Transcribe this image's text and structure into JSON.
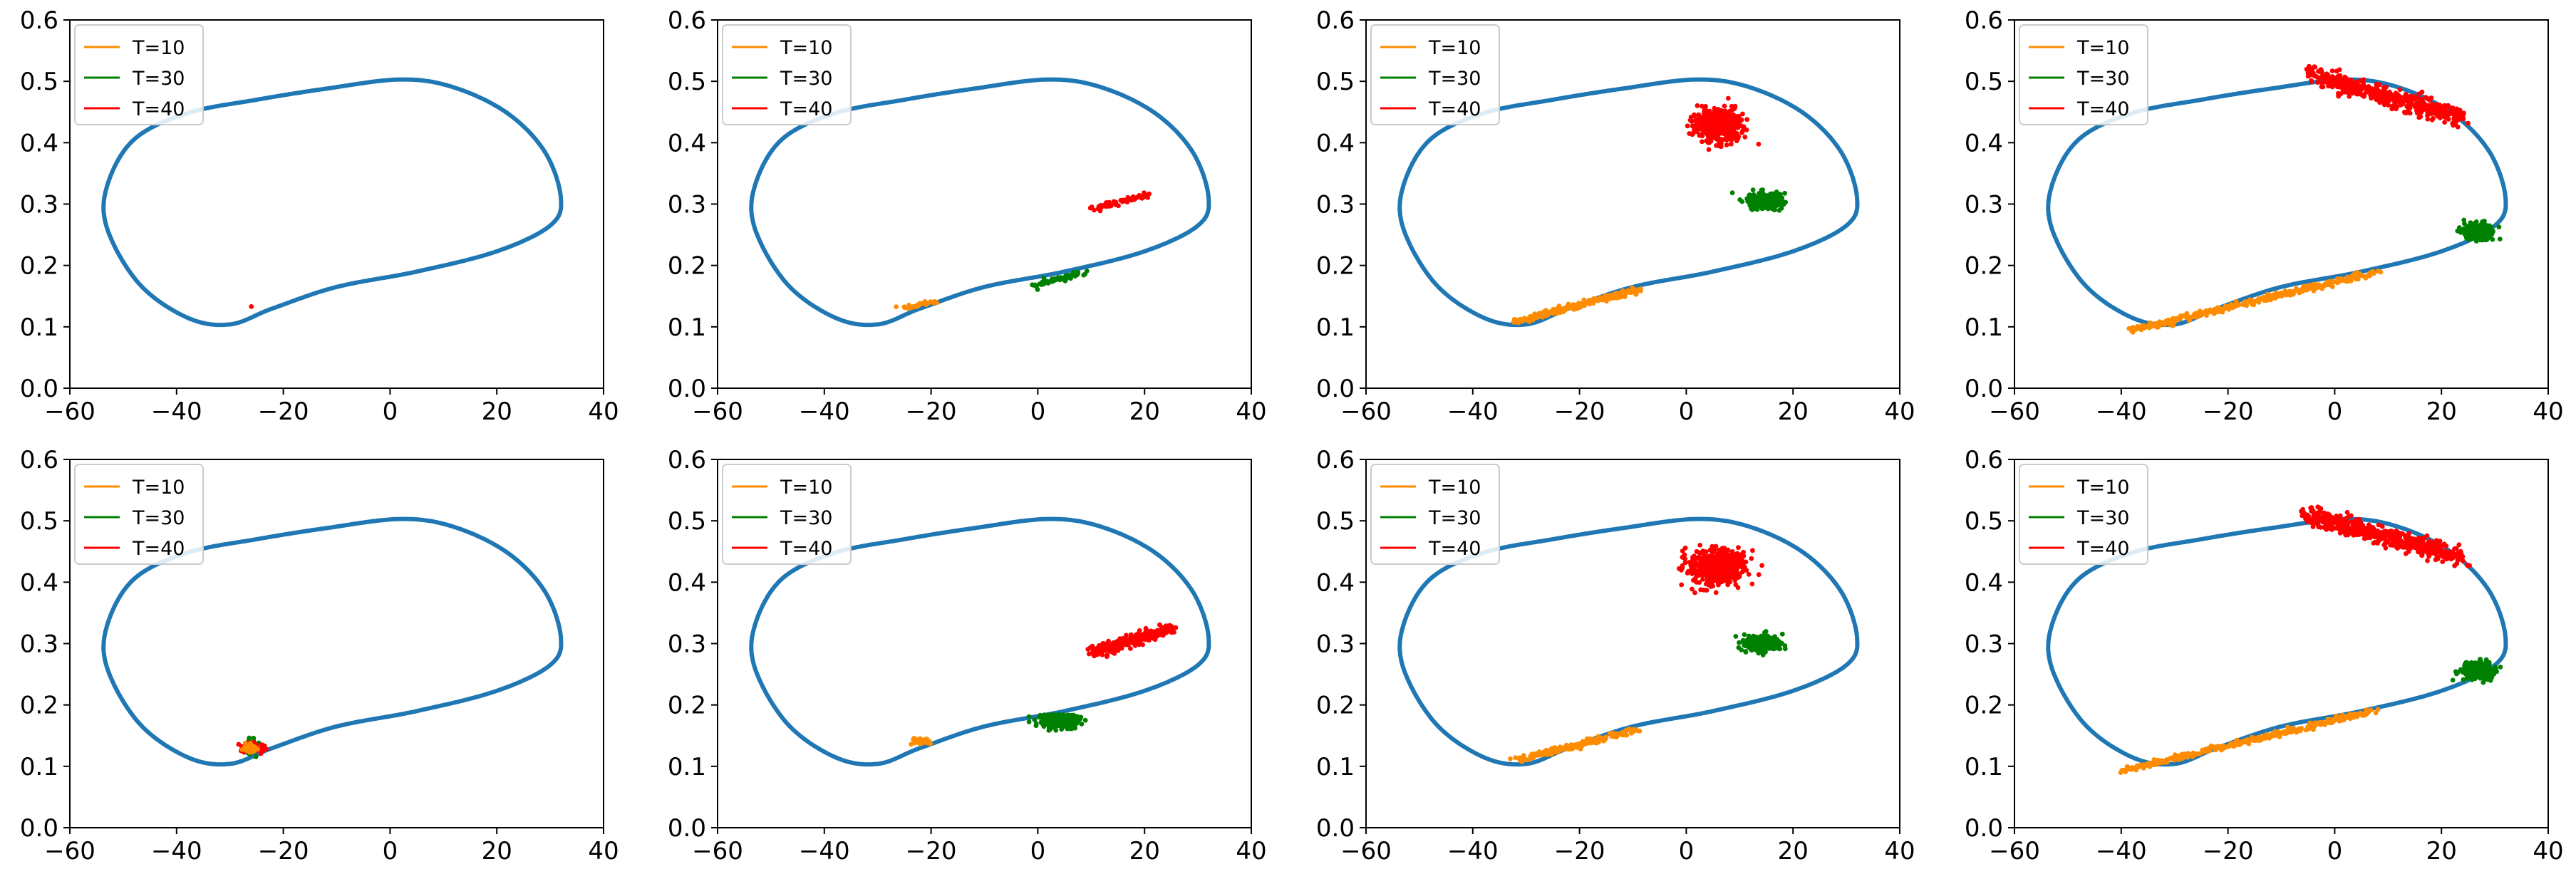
{
  "chart_data": {
    "type": "scatter",
    "layout": "2x4 grid of subplots",
    "axes": {
      "xlim": [
        -60,
        40
      ],
      "ylim": [
        0.0,
        0.6
      ],
      "xticks": [
        "−60",
        "−40",
        "−20",
        "0",
        "20",
        "40"
      ],
      "yticks": [
        "0.0",
        "0.1",
        "0.2",
        "0.3",
        "0.4",
        "0.5",
        "0.6"
      ],
      "grid": false
    },
    "legend": {
      "placement": "upper-left",
      "entries": [
        {
          "label": "T=10",
          "color": "#ff8c00"
        },
        {
          "label": "T=30",
          "color": "#008000"
        },
        {
          "label": "T=40",
          "color": "#ff0000"
        }
      ]
    },
    "limit_cycle": {
      "color": "#1f77b4",
      "points": [
        [
          2,
          0.503
        ],
        [
          12,
          0.49
        ],
        [
          22,
          0.448
        ],
        [
          29,
          0.385
        ],
        [
          32,
          0.31
        ],
        [
          30,
          0.265
        ],
        [
          20,
          0.223
        ],
        [
          5,
          0.19
        ],
        [
          -10,
          0.165
        ],
        [
          -22,
          0.13
        ],
        [
          -30,
          0.104
        ],
        [
          -38,
          0.115
        ],
        [
          -47,
          0.17
        ],
        [
          -53,
          0.26
        ],
        [
          -53,
          0.33
        ],
        [
          -48,
          0.405
        ],
        [
          -38,
          0.448
        ],
        [
          -25,
          0.47
        ],
        [
          -12,
          0.488
        ],
        [
          2,
          0.503
        ]
      ]
    },
    "panels": [
      {
        "clusters": [
          {
            "series": "T=40",
            "color": "#ff0000",
            "center": [
              -26,
              0.133
            ],
            "count": 1
          }
        ]
      },
      {
        "clusters": [
          {
            "series": "T=10",
            "color": "#ff8c00",
            "shape": "line",
            "from": [
              -25,
              0.131
            ],
            "to": [
              -19,
              0.141
            ],
            "count": 30
          },
          {
            "series": "T=30",
            "color": "#008000",
            "shape": "line",
            "from": [
              -1,
              0.166
            ],
            "to": [
              9,
              0.19
            ],
            "count": 60
          },
          {
            "series": "T=40",
            "color": "#ff0000",
            "shape": "line",
            "from": [
              10,
              0.292
            ],
            "to": [
              20,
              0.315
            ],
            "count": 60
          }
        ]
      },
      {
        "clusters": [
          {
            "series": "T=10",
            "color": "#ff8c00",
            "shape": "line",
            "from": [
              -32,
              0.108
            ],
            "to": [
              -9,
              0.16
            ],
            "count": 220
          },
          {
            "series": "T=30",
            "color": "#008000",
            "shape": "blob",
            "center": [
              15,
              0.305
            ],
            "spread": [
              3,
              0.011
            ],
            "count": 300
          },
          {
            "series": "T=40",
            "color": "#ff0000",
            "shape": "blob",
            "center": [
              6,
              0.43
            ],
            "spread": [
              4,
              0.024
            ],
            "count": 500
          }
        ]
      },
      {
        "clusters": [
          {
            "series": "T=10",
            "color": "#ff8c00",
            "shape": "line",
            "from": [
              -39,
              0.092
            ],
            "to": [
              8,
              0.19
            ],
            "count": 380
          },
          {
            "series": "T=30",
            "color": "#008000",
            "shape": "blob",
            "center": [
              27,
              0.255
            ],
            "spread": [
              2.5,
              0.012
            ],
            "count": 300
          },
          {
            "series": "T=40",
            "color": "#ff0000",
            "shape": "arc",
            "from": [
              -5,
              0.512
            ],
            "to": [
              24,
              0.44
            ],
            "width": 0.015,
            "count": 500
          }
        ]
      },
      {
        "clusters": [
          {
            "series": "T=30",
            "color": "#008000",
            "shape": "blob",
            "center": [
              -26,
              0.13
            ],
            "spread": [
              1,
              0.012
            ],
            "count": 60
          },
          {
            "series": "T=40",
            "color": "#ff0000",
            "shape": "blob",
            "center": [
              -26,
              0.13
            ],
            "spread": [
              2,
              0.008
            ],
            "count": 60
          },
          {
            "series": "T=10",
            "color": "#ff8c00",
            "shape": "blob",
            "center": [
              -26,
              0.13
            ],
            "spread": [
              1,
              0.006
            ],
            "count": 40
          }
        ]
      },
      {
        "clusters": [
          {
            "series": "T=10",
            "color": "#ff8c00",
            "shape": "blob",
            "center": [
              -22,
              0.14
            ],
            "spread": [
              1.2,
              0.005
            ],
            "count": 50
          },
          {
            "series": "T=30",
            "color": "#008000",
            "shape": "blob",
            "center": [
              4,
              0.175
            ],
            "spread": [
              3,
              0.01
            ],
            "count": 300
          },
          {
            "series": "T=40",
            "color": "#ff0000",
            "shape": "line",
            "from": [
              10,
              0.285
            ],
            "to": [
              25,
              0.325
            ],
            "width": 0.008,
            "count": 300
          }
        ]
      },
      {
        "clusters": [
          {
            "series": "T=10",
            "color": "#ff8c00",
            "shape": "line",
            "from": [
              -32,
              0.11
            ],
            "to": [
              -9,
              0.16
            ],
            "count": 220
          },
          {
            "series": "T=30",
            "color": "#008000",
            "shape": "blob",
            "center": [
              14,
              0.3
            ],
            "spread": [
              3,
              0.011
            ],
            "count": 300
          },
          {
            "series": "T=40",
            "color": "#ff0000",
            "shape": "blob",
            "center": [
              6,
              0.425
            ],
            "spread": [
              4.5,
              0.026
            ],
            "count": 550
          }
        ]
      },
      {
        "clusters": [
          {
            "series": "T=10",
            "color": "#ff8c00",
            "shape": "line",
            "from": [
              -40,
              0.092
            ],
            "to": [
              7,
              0.19
            ],
            "count": 380
          },
          {
            "series": "T=30",
            "color": "#008000",
            "shape": "blob",
            "center": [
              27,
              0.255
            ],
            "spread": [
              2.5,
              0.012
            ],
            "count": 300
          },
          {
            "series": "T=40",
            "color": "#ff0000",
            "shape": "arc",
            "from": [
              -5,
              0.51
            ],
            "to": [
              24,
              0.44
            ],
            "width": 0.015,
            "count": 500
          }
        ]
      }
    ]
  }
}
